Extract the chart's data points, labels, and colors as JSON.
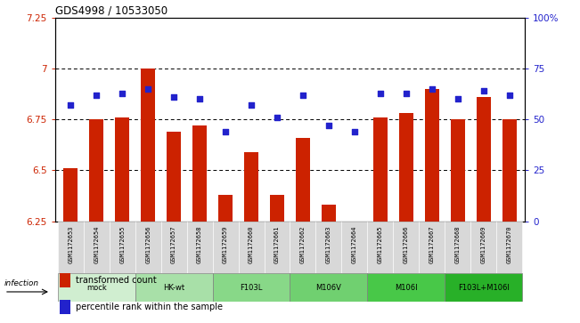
{
  "title": "GDS4998 / 10533050",
  "samples": [
    "GSM1172653",
    "GSM1172654",
    "GSM1172655",
    "GSM1172656",
    "GSM1172657",
    "GSM1172658",
    "GSM1172659",
    "GSM1172660",
    "GSM1172661",
    "GSM1172662",
    "GSM1172663",
    "GSM1172664",
    "GSM1172665",
    "GSM1172666",
    "GSM1172667",
    "GSM1172668",
    "GSM1172669",
    "GSM1172670"
  ],
  "bar_values": [
    6.51,
    6.75,
    6.76,
    7.0,
    6.69,
    6.72,
    6.38,
    6.59,
    6.38,
    6.66,
    6.33,
    6.25,
    6.76,
    6.78,
    6.9,
    6.75,
    6.86,
    6.75
  ],
  "dot_values": [
    57,
    62,
    63,
    65,
    61,
    60,
    44,
    57,
    51,
    62,
    47,
    44,
    63,
    63,
    65,
    60,
    64,
    62
  ],
  "bar_color": "#cc2200",
  "dot_color": "#2222cc",
  "ylim_left": [
    6.25,
    7.25
  ],
  "ylim_right": [
    0,
    100
  ],
  "yticks_left": [
    6.25,
    6.5,
    6.75,
    7.0,
    7.25
  ],
  "yticks_right": [
    0,
    25,
    50,
    75,
    100
  ],
  "ytick_labels_left": [
    "6.25",
    "6.5",
    "6.75",
    "7",
    "7.25"
  ],
  "ytick_labels_right": [
    "0",
    "25",
    "50",
    "75",
    "100%"
  ],
  "hlines": [
    6.5,
    6.75,
    7.0
  ],
  "groups": [
    {
      "label": "mock",
      "indices": [
        0,
        1,
        2
      ],
      "color": "#d0eed0"
    },
    {
      "label": "HK-wt",
      "indices": [
        3,
        4,
        5
      ],
      "color": "#a8e0a8"
    },
    {
      "label": "F103L",
      "indices": [
        6,
        7,
        8
      ],
      "color": "#88d888"
    },
    {
      "label": "M106V",
      "indices": [
        9,
        10,
        11
      ],
      "color": "#70d070"
    },
    {
      "label": "M106I",
      "indices": [
        12,
        13,
        14
      ],
      "color": "#48c848"
    },
    {
      "label": "F103L+M106I",
      "indices": [
        15,
        16,
        17
      ],
      "color": "#28b028"
    }
  ],
  "sample_cell_color": "#d8d8d8",
  "infection_label": "infection",
  "legend": [
    {
      "label": "transformed count",
      "color": "#cc2200",
      "marker": "s"
    },
    {
      "label": "percentile rank within the sample",
      "color": "#2222cc",
      "marker": "s"
    }
  ],
  "bar_width": 0.55
}
